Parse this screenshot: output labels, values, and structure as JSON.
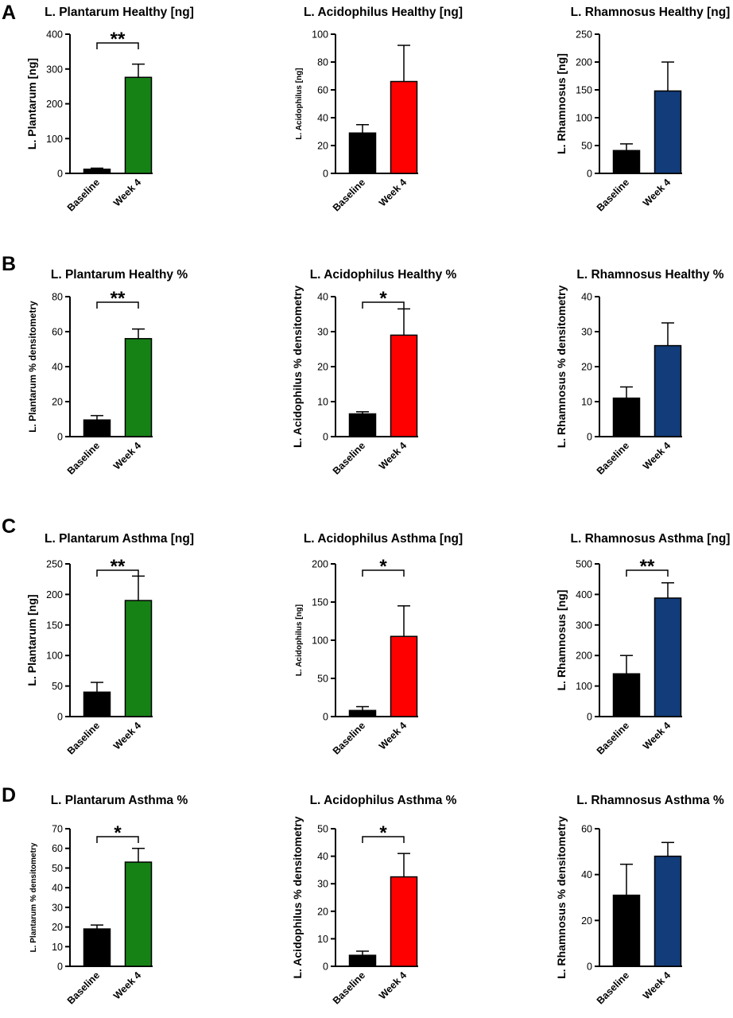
{
  "colors": {
    "baseline": "#000000",
    "plantarum": "#168216",
    "acidophilus": "#FF0000",
    "rhamnosus": "#123C7A",
    "axis": "#000000"
  },
  "panels": [
    {
      "letter": "A"
    },
    {
      "letter": "B"
    },
    {
      "letter": "C"
    },
    {
      "letter": "D"
    }
  ],
  "chart_data": [
    {
      "type": "bar",
      "panel": "A",
      "title": "L. Plantarum Healthy [ng]",
      "ylabel": "L. Plantarum [ng]",
      "categories": [
        "Baseline",
        "Week 4"
      ],
      "values": [
        12,
        276
      ],
      "errors": [
        3,
        38
      ],
      "ylim": [
        0,
        400
      ],
      "yticks": [
        0,
        100,
        200,
        300,
        400
      ],
      "significance": "**",
      "bar_colors": [
        "baseline",
        "plantarum"
      ],
      "grid": false
    },
    {
      "type": "bar",
      "panel": "A",
      "title": "L. Acidophilus Healthy [ng]",
      "ylabel": "L. Acidophilus [ng]",
      "categories": [
        "Baseline",
        "Week 4"
      ],
      "values": [
        29,
        66
      ],
      "errors": [
        6,
        26
      ],
      "ylim": [
        0,
        100
      ],
      "yticks": [
        0,
        20,
        40,
        60,
        80,
        100
      ],
      "significance": "",
      "bar_colors": [
        "baseline",
        "acidophilus"
      ],
      "grid": false
    },
    {
      "type": "bar",
      "panel": "A",
      "title": "L. Rhamnosus Healthy [ng]",
      "ylabel": "L. Rhamnosus [ng]",
      "categories": [
        "Baseline",
        "Week 4"
      ],
      "values": [
        41,
        148
      ],
      "errors": [
        12,
        52
      ],
      "ylim": [
        0,
        250
      ],
      "yticks": [
        0,
        50,
        100,
        150,
        200,
        250
      ],
      "significance": "",
      "bar_colors": [
        "baseline",
        "rhamnosus"
      ],
      "grid": false
    },
    {
      "type": "bar",
      "panel": "B",
      "title": "L. Plantarum Healthy %",
      "ylabel": "L. Plantarum % densitometry",
      "categories": [
        "Baseline",
        "Week 4"
      ],
      "values": [
        9.5,
        56
      ],
      "errors": [
        2.5,
        5.5
      ],
      "ylim": [
        0,
        80
      ],
      "yticks": [
        0,
        20,
        40,
        60,
        80
      ],
      "significance": "**",
      "bar_colors": [
        "baseline",
        "plantarum"
      ],
      "grid": false
    },
    {
      "type": "bar",
      "panel": "B",
      "title": "L. Acidophilus Healthy %",
      "ylabel": "L. Acidophilus % densitometry",
      "categories": [
        "Baseline",
        "Week 4"
      ],
      "values": [
        6.5,
        29
      ],
      "errors": [
        0.6,
        7.5
      ],
      "ylim": [
        0,
        40
      ],
      "yticks": [
        0,
        10,
        20,
        30,
        40
      ],
      "significance": "*",
      "bar_colors": [
        "baseline",
        "acidophilus"
      ],
      "grid": false
    },
    {
      "type": "bar",
      "panel": "B",
      "title": "L. Rhamnosus Healthy %",
      "ylabel": "L. Rhamnosus % densitometry",
      "categories": [
        "Baseline",
        "Week 4"
      ],
      "values": [
        11,
        26
      ],
      "errors": [
        3.2,
        6.5
      ],
      "ylim": [
        0,
        40
      ],
      "yticks": [
        0,
        10,
        20,
        30,
        40
      ],
      "significance": "",
      "bar_colors": [
        "baseline",
        "rhamnosus"
      ],
      "grid": false
    },
    {
      "type": "bar",
      "panel": "C",
      "title": "L. Plantarum Asthma [ng]",
      "ylabel": "L. Plantarum [ng]",
      "categories": [
        "Baseline",
        "Week 4"
      ],
      "values": [
        40,
        190
      ],
      "errors": [
        16,
        40
      ],
      "ylim": [
        0,
        250
      ],
      "yticks": [
        0,
        50,
        100,
        150,
        200,
        250
      ],
      "significance": "**",
      "bar_colors": [
        "baseline",
        "plantarum"
      ],
      "grid": false
    },
    {
      "type": "bar",
      "panel": "C",
      "title": "L. Acidophilus Asthma [ng]",
      "ylabel": "L. Acidophilus [ng]",
      "categories": [
        "Baseline",
        "Week 4"
      ],
      "values": [
        8,
        105
      ],
      "errors": [
        5,
        40
      ],
      "ylim": [
        0,
        200
      ],
      "yticks": [
        0,
        50,
        100,
        150,
        200
      ],
      "significance": "*",
      "bar_colors": [
        "baseline",
        "acidophilus"
      ],
      "grid": false
    },
    {
      "type": "bar",
      "panel": "C",
      "title": "L. Rhamnosus Asthma [ng]",
      "ylabel": "L. Rhamnosus [ng]",
      "categories": [
        "Baseline",
        "Week 4"
      ],
      "values": [
        140,
        388
      ],
      "errors": [
        60,
        50
      ],
      "ylim": [
        0,
        500
      ],
      "yticks": [
        0,
        100,
        200,
        300,
        400,
        500
      ],
      "significance": "**",
      "bar_colors": [
        "baseline",
        "rhamnosus"
      ],
      "grid": false
    },
    {
      "type": "bar",
      "panel": "D",
      "title": "L. Plantarum Asthma %",
      "ylabel": "L. Plantarum % densitometry",
      "categories": [
        "Baseline",
        "Week 4"
      ],
      "values": [
        19,
        53
      ],
      "errors": [
        2,
        7
      ],
      "ylim": [
        0,
        70
      ],
      "yticks": [
        0,
        10,
        20,
        30,
        40,
        50,
        60,
        70
      ],
      "significance": "*",
      "bar_colors": [
        "baseline",
        "plantarum"
      ],
      "grid": false
    },
    {
      "type": "bar",
      "panel": "D",
      "title": "L. Acidophilus Asthma %",
      "ylabel": "L. Acidophilus % densitometry",
      "categories": [
        "Baseline",
        "Week 4"
      ],
      "values": [
        4,
        32.5
      ],
      "errors": [
        1.5,
        8.5
      ],
      "ylim": [
        0,
        50
      ],
      "yticks": [
        0,
        10,
        20,
        30,
        40,
        50
      ],
      "significance": "*",
      "bar_colors": [
        "baseline",
        "acidophilus"
      ],
      "grid": false
    },
    {
      "type": "bar",
      "panel": "D",
      "title": "L. Rhamnosus Asthma %",
      "ylabel": "L. Rhamnosus % densitometry",
      "categories": [
        "Baseline",
        "Week 4"
      ],
      "values": [
        31,
        48
      ],
      "errors": [
        13.5,
        6
      ],
      "ylim": [
        0,
        60
      ],
      "yticks": [
        0,
        20,
        40,
        60
      ],
      "significance": "",
      "bar_colors": [
        "baseline",
        "rhamnosus"
      ],
      "grid": false
    }
  ]
}
